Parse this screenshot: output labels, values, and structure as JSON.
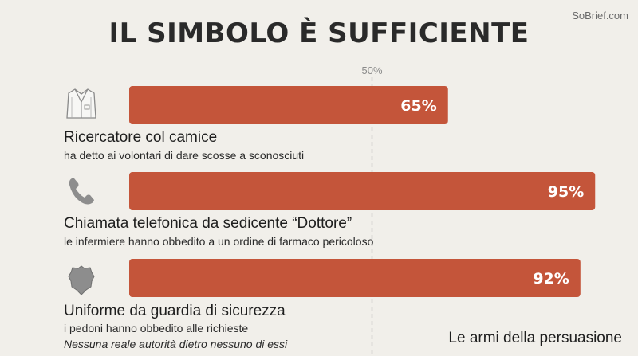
{
  "brand": "SoBrief.com",
  "chart_data": {
    "type": "bar",
    "title": "IL SIMBOLO È SUFFICIENTE",
    "reference_line": {
      "value": 50,
      "label": "50%"
    },
    "xlim": [
      0,
      100
    ],
    "categories": [
      "Ricercatore col camice",
      "Chiamata telefonica da sedicente “Dottore”",
      "Uniforme da guardia di sicurezza"
    ],
    "subtitles": [
      "ha detto ai volontari di dare scosse a sconosciuti",
      "le infermiere hanno obbedito a un ordine di farmaco pericoloso",
      "i pedoni hanno obbedito alle richieste"
    ],
    "values": [
      65,
      95,
      92
    ],
    "value_labels": [
      "65%",
      "95%",
      "92%"
    ],
    "icons": [
      "lab-coat-icon",
      "phone-icon",
      "badge-icon"
    ],
    "bar_color": "#c4553a"
  },
  "note": "Nessuna reale autorità dietro nessuno di essi",
  "source": "Le armi della persuasione"
}
